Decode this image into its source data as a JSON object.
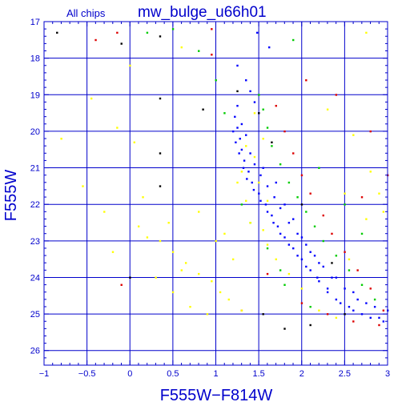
{
  "chart_data": {
    "type": "scatter",
    "title": "mw_bulge_u66h01",
    "subtitle": "All chips",
    "xlabel": "F555W−F814W",
    "ylabel": "F555W",
    "xlim": [
      -1,
      3
    ],
    "ylim": [
      26.4,
      17
    ],
    "y_axis_inverted": true,
    "grid": true,
    "x_ticks": [
      -1,
      -0.5,
      0,
      0.5,
      1,
      1.5,
      2,
      2.5,
      3
    ],
    "x_tick_labels": [
      "−1",
      "−0.5",
      "0",
      "0.5",
      "1",
      "1.5",
      "2",
      "2.5",
      "3"
    ],
    "y_ticks": [
      17,
      18,
      19,
      20,
      21,
      22,
      23,
      24,
      25,
      26
    ],
    "y_tick_labels": [
      "17",
      "18",
      "19",
      "20",
      "21",
      "22",
      "23",
      "24",
      "25",
      "26"
    ],
    "colors": {
      "axis": "#0000cc",
      "grid": "#0000cc",
      "text": "#0000cc",
      "chip_blue": "#0000ff",
      "chip_green": "#00cc00",
      "chip_red": "#dd0000",
      "chip_black": "#000000",
      "chip_yellow": "#ffff00"
    },
    "series": [
      {
        "color": "#0000ff",
        "points": [
          [
            1.22,
            19.6
          ],
          [
            1.25,
            19.9
          ],
          [
            1.28,
            20.2
          ],
          [
            1.3,
            20.5
          ],
          [
            1.33,
            20.8
          ],
          [
            1.38,
            21.1
          ],
          [
            1.42,
            21.4
          ],
          [
            1.5,
            21.7
          ],
          [
            1.58,
            22.0
          ],
          [
            1.65,
            22.3
          ],
          [
            1.72,
            22.6
          ],
          [
            1.8,
            22.9
          ],
          [
            1.9,
            23.2
          ],
          [
            2.0,
            23.5
          ],
          [
            2.1,
            23.8
          ],
          [
            2.2,
            24.1
          ],
          [
            2.3,
            24.4
          ],
          [
            2.45,
            24.7
          ],
          [
            2.6,
            24.9
          ],
          [
            2.8,
            25.1
          ],
          [
            2.95,
            25.2
          ],
          [
            1.25,
            19.3
          ],
          [
            1.3,
            19.8
          ],
          [
            1.35,
            20.1
          ],
          [
            1.4,
            20.6
          ],
          [
            1.45,
            20.9
          ],
          [
            1.52,
            21.2
          ],
          [
            1.6,
            21.5
          ],
          [
            1.68,
            21.8
          ],
          [
            1.75,
            22.1
          ],
          [
            1.85,
            22.5
          ],
          [
            1.95,
            22.8
          ],
          [
            2.05,
            23.1
          ],
          [
            2.15,
            23.4
          ],
          [
            2.25,
            23.7
          ],
          [
            2.35,
            24.0
          ],
          [
            2.5,
            24.3
          ],
          [
            2.65,
            24.6
          ],
          [
            2.85,
            24.8
          ],
          [
            1.2,
            20.0
          ],
          [
            1.23,
            20.3
          ],
          [
            1.27,
            20.6
          ],
          [
            1.32,
            21.0
          ],
          [
            1.36,
            21.3
          ],
          [
            1.44,
            21.6
          ],
          [
            1.52,
            21.9
          ],
          [
            1.6,
            22.2
          ],
          [
            1.67,
            22.5
          ],
          [
            1.75,
            22.8
          ],
          [
            1.85,
            23.1
          ],
          [
            1.95,
            23.4
          ],
          [
            2.05,
            23.7
          ],
          [
            2.18,
            24.0
          ],
          [
            2.3,
            24.3
          ],
          [
            2.4,
            24.6
          ],
          [
            2.55,
            24.8
          ],
          [
            2.7,
            25.0
          ],
          [
            2.9,
            25.1
          ],
          [
            1.4,
            18.9
          ],
          [
            1.45,
            19.2
          ],
          [
            1.35,
            18.6
          ],
          [
            1.5,
            19.5
          ],
          [
            1.55,
            21.0
          ],
          [
            1.7,
            21.4
          ],
          [
            1.8,
            22.0
          ],
          [
            1.9,
            22.4
          ],
          [
            2.0,
            22.9
          ],
          [
            2.1,
            23.3
          ],
          [
            2.2,
            23.6
          ],
          [
            2.4,
            24.0
          ],
          [
            2.6,
            24.4
          ],
          [
            2.75,
            24.7
          ],
          [
            3.0,
            24.9
          ],
          [
            1.48,
            17.3
          ],
          [
            1.62,
            17.7
          ],
          [
            1.25,
            18.2
          ]
        ]
      },
      {
        "color": "#00cc00",
        "points": [
          [
            1.5,
            19.0
          ],
          [
            1.55,
            19.4
          ],
          [
            1.6,
            19.9
          ],
          [
            1.65,
            20.4
          ],
          [
            1.75,
            20.9
          ],
          [
            1.85,
            21.4
          ],
          [
            1.95,
            21.8
          ],
          [
            2.05,
            22.2
          ],
          [
            2.15,
            22.6
          ],
          [
            2.25,
            23.0
          ],
          [
            2.4,
            23.4
          ],
          [
            2.55,
            23.8
          ],
          [
            2.7,
            24.2
          ],
          [
            2.85,
            24.6
          ],
          [
            1.1,
            19.5
          ],
          [
            1.3,
            22.0
          ],
          [
            1.4,
            22.5
          ],
          [
            1.6,
            23.2
          ],
          [
            1.75,
            23.8
          ],
          [
            0.2,
            17.3
          ],
          [
            0.8,
            17.8
          ],
          [
            1.0,
            18.6
          ],
          [
            2.2,
            21.0
          ],
          [
            2.5,
            22.0
          ],
          [
            2.7,
            22.8
          ],
          [
            1.8,
            24.2
          ],
          [
            2.1,
            24.8
          ],
          [
            0.5,
            17.2
          ],
          [
            1.9,
            17.5
          ]
        ]
      },
      {
        "color": "#dd0000",
        "points": [
          [
            1.7,
            19.3
          ],
          [
            1.8,
            20.0
          ],
          [
            1.9,
            20.6
          ],
          [
            2.0,
            21.2
          ],
          [
            2.1,
            21.7
          ],
          [
            2.25,
            22.3
          ],
          [
            2.35,
            22.8
          ],
          [
            2.5,
            23.3
          ],
          [
            2.65,
            23.8
          ],
          [
            2.8,
            24.3
          ],
          [
            2.95,
            24.9
          ],
          [
            2.9,
            25.3
          ],
          [
            2.6,
            25.2
          ],
          [
            2.3,
            25.0
          ],
          [
            2.0,
            24.7
          ],
          [
            1.6,
            23.9
          ],
          [
            -0.4,
            17.5
          ],
          [
            -0.15,
            17.3
          ],
          [
            0.95,
            17.2
          ],
          [
            0.95,
            17.9
          ],
          [
            2.8,
            20.0
          ],
          [
            2.4,
            19.0
          ],
          [
            2.05,
            18.6
          ],
          [
            -0.1,
            24.2
          ],
          [
            3.0,
            21.2
          ],
          [
            2.7,
            21.8
          ],
          [
            1.3,
            24.9
          ]
        ]
      },
      {
        "color": "#000000",
        "points": [
          [
            -0.85,
            17.3
          ],
          [
            -0.1,
            17.6
          ],
          [
            0.35,
            17.4
          ],
          [
            0.35,
            19.1
          ],
          [
            0.35,
            20.6
          ],
          [
            0.35,
            21.5
          ],
          [
            0.0,
            24.0
          ],
          [
            2.5,
            25.0
          ],
          [
            2.1,
            25.3
          ],
          [
            1.8,
            25.4
          ],
          [
            1.55,
            25.0
          ],
          [
            1.5,
            19.5
          ],
          [
            1.25,
            18.9
          ],
          [
            1.65,
            20.3
          ],
          [
            2.0,
            22.0
          ],
          [
            2.35,
            23.6
          ],
          [
            0.85,
            19.4
          ]
        ]
      },
      {
        "color": "#ffff00",
        "points": [
          [
            0.1,
            22.6
          ],
          [
            0.2,
            22.9
          ],
          [
            0.35,
            23.0
          ],
          [
            0.5,
            23.3
          ],
          [
            0.65,
            23.6
          ],
          [
            0.8,
            23.9
          ],
          [
            0.95,
            24.1
          ],
          [
            1.05,
            24.4
          ],
          [
            1.15,
            24.6
          ],
          [
            1.3,
            24.9
          ],
          [
            0.3,
            24.0
          ],
          [
            0.5,
            24.4
          ],
          [
            0.7,
            24.8
          ],
          [
            0.9,
            25.0
          ],
          [
            1.0,
            23.0
          ],
          [
            1.1,
            22.8
          ],
          [
            1.2,
            23.5
          ],
          [
            0.45,
            22.5
          ],
          [
            0.15,
            21.8
          ],
          [
            -0.2,
            23.3
          ],
          [
            -0.3,
            22.2
          ],
          [
            -0.45,
            19.1
          ],
          [
            -0.15,
            19.9
          ],
          [
            0.05,
            20.3
          ],
          [
            -0.55,
            21.5
          ],
          [
            -0.8,
            20.2
          ],
          [
            0.0,
            18.2
          ],
          [
            1.3,
            21.1
          ],
          [
            1.35,
            21.9
          ],
          [
            1.4,
            22.5
          ],
          [
            1.45,
            19.5
          ],
          [
            1.55,
            20.2
          ],
          [
            1.45,
            20.7
          ],
          [
            1.5,
            21.4
          ],
          [
            1.55,
            22.7
          ],
          [
            1.6,
            23.1
          ],
          [
            1.7,
            23.5
          ],
          [
            1.85,
            23.9
          ],
          [
            2.0,
            24.3
          ],
          [
            2.2,
            24.9
          ],
          [
            2.4,
            25.1
          ],
          [
            2.55,
            23.5
          ],
          [
            2.75,
            22.4
          ],
          [
            2.8,
            21.1
          ],
          [
            2.5,
            21.7
          ],
          [
            2.9,
            21.7
          ],
          [
            2.95,
            22.2
          ],
          [
            2.6,
            20.1
          ],
          [
            2.3,
            19.4
          ],
          [
            2.75,
            17.3
          ],
          [
            0.6,
            17.7
          ],
          [
            1.25,
            21.4
          ],
          [
            1.35,
            20.4
          ],
          [
            1.6,
            21.9
          ],
          [
            0.8,
            22.2
          ],
          [
            0.6,
            23.8
          ]
        ]
      }
    ]
  }
}
